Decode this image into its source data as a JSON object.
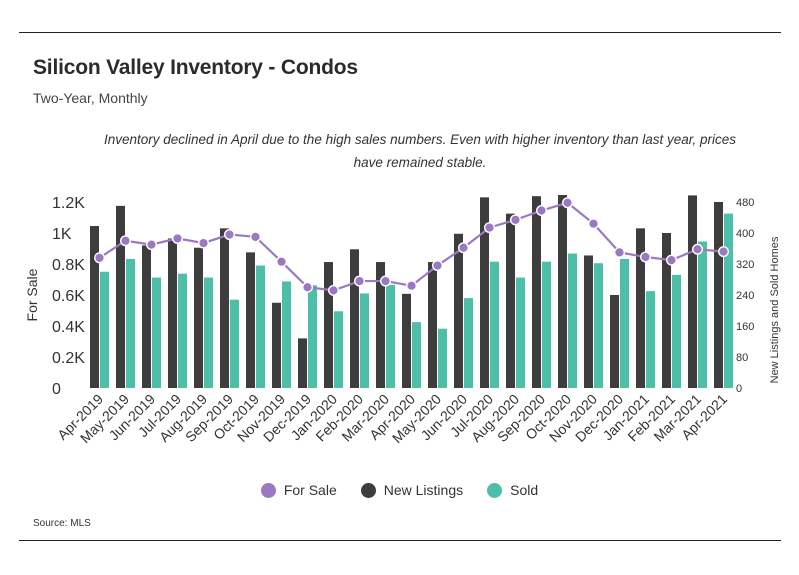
{
  "header": {
    "title": "Silicon Valley Inventory - Condos",
    "subtitle": "Two-Year, Monthly",
    "annotation_line1": "Inventory declined in April due to the high sales numbers. Even with higher inventory than last year, prices",
    "annotation_line2": "have remained stable."
  },
  "footer": {
    "source": "Source:  MLS"
  },
  "colors": {
    "for_sale": "#9b79c0",
    "new_listings": "#3d3d3d",
    "sold": "#4dbfa8",
    "axis": "#333333"
  },
  "chart_data": {
    "type": "bar",
    "categories": [
      "Apr-2019",
      "May-2019",
      "Jun-2019",
      "Jul-2019",
      "Aug-2019",
      "Sep-2019",
      "Oct-2019",
      "Nov-2019",
      "Dec-2019",
      "Jan-2020",
      "Feb-2020",
      "Mar-2020",
      "Apr-2020",
      "May-2020",
      "Jun-2020",
      "Jul-2020",
      "Aug-2020",
      "Sep-2020",
      "Oct-2020",
      "Nov-2020",
      "Dec-2020",
      "Jan-2021",
      "Feb-2021",
      "Mar-2021",
      "Apr-2021"
    ],
    "ylabel": "For Sale",
    "y2label": "New Listings and Sold Homes",
    "ylim": [
      0,
      1200
    ],
    "y_ticks": [
      0,
      200,
      400,
      600,
      800,
      1000,
      1200
    ],
    "y_tick_labels": [
      "0",
      "0.2K",
      "0.4K",
      "0.6K",
      "0.8K",
      "1K",
      "1.2K"
    ],
    "y2lim": [
      0,
      480
    ],
    "y2_ticks": [
      0,
      80,
      160,
      240,
      320,
      400,
      480
    ],
    "y2_tick_labels": [
      "0",
      "80",
      "160",
      "240",
      "320",
      "400",
      "480"
    ],
    "legend": [
      "For Sale",
      "New Listings",
      "Sold"
    ],
    "legend_position": "bottom",
    "series": [
      {
        "name": "New Listings",
        "type": "bar",
        "axis": "right",
        "values": [
          418,
          470,
          368,
          386,
          362,
          412,
          350,
          220,
          128,
          325,
          358,
          325,
          243,
          325,
          398,
          492,
          450,
          495,
          498,
          342,
          240,
          412,
          400,
          497,
          480
        ]
      },
      {
        "name": "Sold",
        "type": "bar",
        "axis": "right",
        "values": [
          300,
          333,
          285,
          295,
          285,
          228,
          316,
          275,
          265,
          198,
          244,
          266,
          170,
          153,
          232,
          326,
          285,
          326,
          347,
          322,
          333,
          250,
          292,
          378,
          450
        ]
      },
      {
        "name": "For Sale",
        "type": "line",
        "axis": "left",
        "values": [
          840,
          950,
          925,
          965,
          935,
          990,
          975,
          815,
          650,
          630,
          690,
          690,
          660,
          790,
          905,
          1035,
          1085,
          1145,
          1195,
          1060,
          875,
          845,
          825,
          895,
          880
        ]
      }
    ]
  }
}
